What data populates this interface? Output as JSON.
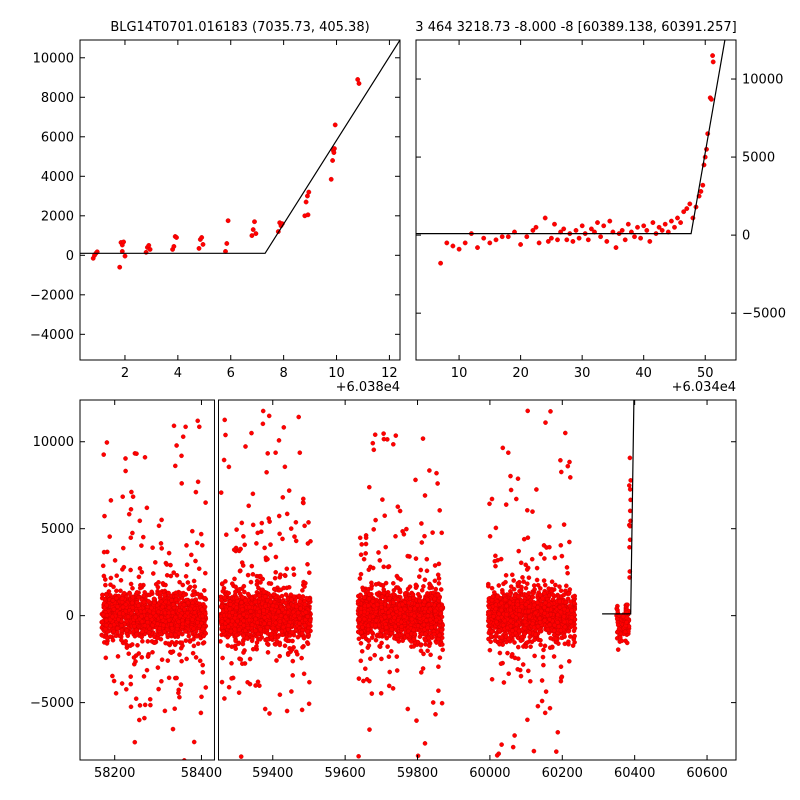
{
  "chart_data": [
    {
      "id": "top-left",
      "type": "scatter",
      "title": "BLG14T0701.016183 (7035.73, 405.38)",
      "x_offset_label": "+6.038e4",
      "xlim": [
        0.3,
        12.4
      ],
      "ylim": [
        -5300,
        10900
      ],
      "xticks": [
        2,
        4,
        6,
        8,
        10,
        12
      ],
      "yticks": [
        -4000,
        -2000,
        0,
        2000,
        4000,
        6000,
        8000,
        10000
      ],
      "ytick_side": "left",
      "grid": false,
      "points": [
        [
          0.8,
          -150
        ],
        [
          0.9,
          100
        ],
        [
          0.95,
          180
        ],
        [
          0.85,
          0
        ],
        [
          1.8,
          -600
        ],
        [
          1.85,
          650
        ],
        [
          1.9,
          520
        ],
        [
          1.95,
          680
        ],
        [
          2.0,
          -40
        ],
        [
          1.9,
          200
        ],
        [
          2.8,
          150
        ],
        [
          2.85,
          400
        ],
        [
          2.9,
          500
        ],
        [
          2.95,
          300
        ],
        [
          3.8,
          300
        ],
        [
          3.85,
          450
        ],
        [
          3.9,
          950
        ],
        [
          3.95,
          900
        ],
        [
          4.8,
          350
        ],
        [
          4.85,
          800
        ],
        [
          4.9,
          900
        ],
        [
          4.95,
          550
        ],
        [
          5.8,
          200
        ],
        [
          5.85,
          600
        ],
        [
          5.9,
          1750
        ],
        [
          6.8,
          1000
        ],
        [
          6.85,
          1300
        ],
        [
          6.9,
          1700
        ],
        [
          6.95,
          1100
        ],
        [
          7.8,
          1200
        ],
        [
          7.85,
          1650
        ],
        [
          7.9,
          1500
        ],
        [
          7.95,
          1600
        ],
        [
          8.8,
          2000
        ],
        [
          8.85,
          2700
        ],
        [
          8.9,
          3000
        ],
        [
          8.95,
          3200
        ],
        [
          8.92,
          2050
        ],
        [
          9.8,
          3850
        ],
        [
          9.85,
          4800
        ],
        [
          9.88,
          5300
        ],
        [
          9.9,
          5200
        ],
        [
          9.92,
          5400
        ],
        [
          9.95,
          6600
        ],
        [
          10.8,
          8900
        ],
        [
          10.85,
          8700
        ]
      ],
      "model": [
        [
          0.3,
          100
        ],
        [
          7.3,
          100
        ],
        [
          12.4,
          10900
        ]
      ]
    },
    {
      "id": "top-right",
      "type": "scatter",
      "title": "3 464 3218.73 -8.000 -8 [60389.138, 60391.257]",
      "x_offset_label": "+6.034e4",
      "xlim": [
        3,
        55
      ],
      "ylim": [
        -8000,
        12500
      ],
      "xticks": [
        10,
        20,
        30,
        40,
        50
      ],
      "yticks": [
        -5000,
        0,
        5000,
        10000
      ],
      "ytick_side": "right",
      "grid": false,
      "points": [
        [
          7,
          -1800
        ],
        [
          8,
          -500
        ],
        [
          9,
          -700
        ],
        [
          10,
          -900
        ],
        [
          11,
          -500
        ],
        [
          12,
          100
        ],
        [
          13,
          -800
        ],
        [
          14,
          -200
        ],
        [
          15,
          -500
        ],
        [
          16,
          -300
        ],
        [
          17,
          -100
        ],
        [
          18,
          -100
        ],
        [
          19,
          200
        ],
        [
          20,
          -600
        ],
        [
          21,
          -100
        ],
        [
          22,
          300
        ],
        [
          22.5,
          500
        ],
        [
          23,
          -500
        ],
        [
          24,
          1100
        ],
        [
          24.5,
          -400
        ],
        [
          25,
          -200
        ],
        [
          25.5,
          700
        ],
        [
          26,
          -300
        ],
        [
          26.5,
          200
        ],
        [
          27,
          400
        ],
        [
          27.5,
          -300
        ],
        [
          28,
          100
        ],
        [
          28.5,
          -400
        ],
        [
          29,
          300
        ],
        [
          29.5,
          -200
        ],
        [
          30,
          600
        ],
        [
          30.5,
          100
        ],
        [
          31,
          -300
        ],
        [
          31.5,
          400
        ],
        [
          32,
          200
        ],
        [
          32.5,
          800
        ],
        [
          33,
          -100
        ],
        [
          33.5,
          600
        ],
        [
          34,
          -400
        ],
        [
          34.5,
          900
        ],
        [
          35,
          200
        ],
        [
          35.5,
          -800
        ],
        [
          36,
          100
        ],
        [
          36.5,
          300
        ],
        [
          37,
          -300
        ],
        [
          37.5,
          700
        ],
        [
          38,
          200
        ],
        [
          38.5,
          -100
        ],
        [
          39,
          500
        ],
        [
          39.5,
          -200
        ],
        [
          40,
          600
        ],
        [
          40.5,
          300
        ],
        [
          41,
          -400
        ],
        [
          41.5,
          800
        ],
        [
          42,
          100
        ],
        [
          42.5,
          500
        ],
        [
          43,
          300
        ],
        [
          43.5,
          700
        ],
        [
          44,
          200
        ],
        [
          44.5,
          900
        ],
        [
          45,
          500
        ],
        [
          45.5,
          1100
        ],
        [
          46,
          800
        ],
        [
          46.5,
          1500
        ],
        [
          47,
          1700
        ],
        [
          47.5,
          2000
        ],
        [
          48,
          1100
        ],
        [
          48.5,
          1800
        ],
        [
          49,
          2500
        ],
        [
          49.3,
          2800
        ],
        [
          49.6,
          3200
        ],
        [
          49.8,
          4500
        ],
        [
          50,
          5000
        ],
        [
          50.2,
          5500
        ],
        [
          50.4,
          6500
        ],
        [
          50.8,
          8800
        ],
        [
          51,
          8700
        ],
        [
          51.2,
          11500
        ],
        [
          51.3,
          11100
        ]
      ],
      "model": [
        [
          3,
          100
        ],
        [
          47.7,
          100
        ],
        [
          53.2,
          12500
        ]
      ]
    },
    {
      "id": "bottom",
      "type": "scatter",
      "title": "",
      "xlim": [
        58120,
        60680
      ],
      "ylim": [
        -8300,
        12400
      ],
      "xticks": [
        58200,
        58400,
        59400,
        59600,
        59800,
        60000,
        60200,
        60400,
        60600
      ],
      "yticks": [
        -5000,
        0,
        5000,
        10000
      ],
      "ytick_side": "left",
      "broken_x": {
        "left_xlim": [
          58120,
          58430
        ],
        "right_xlim": [
          59250,
          60680
        ],
        "left_width_frac": 0.205
      },
      "grid": false,
      "seasons": [
        {
          "start": 58170,
          "end": 58410,
          "seed": 11,
          "n": 1400
        },
        {
          "start": 59255,
          "end": 59505,
          "seed": 23,
          "n": 1500
        },
        {
          "start": 59635,
          "end": 59870,
          "seed": 37,
          "n": 1400
        },
        {
          "start": 59995,
          "end": 60235,
          "seed": 53,
          "n": 1400
        },
        {
          "start": 60350,
          "end": 60390,
          "seed": 71,
          "n": 120
        }
      ],
      "model": [
        [
          60310,
          100
        ],
        [
          60389,
          100
        ],
        [
          60398,
          12400
        ]
      ]
    }
  ]
}
